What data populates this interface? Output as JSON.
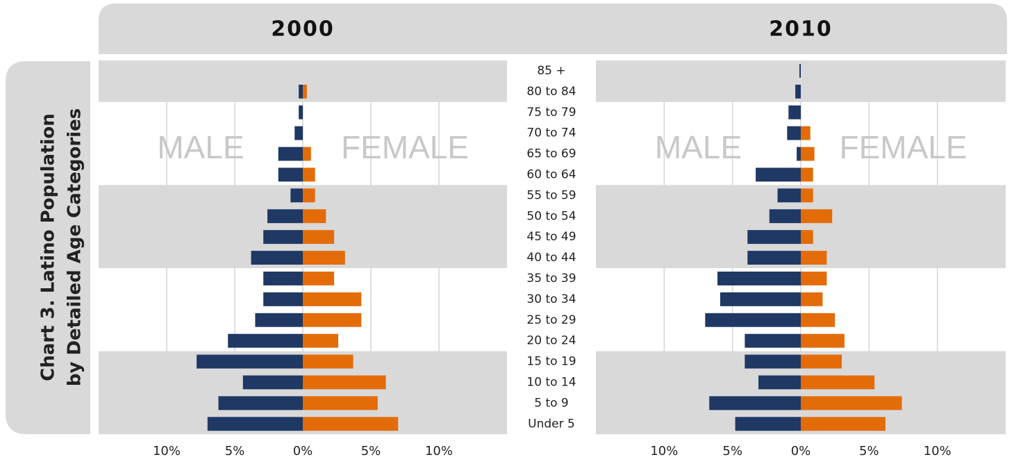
{
  "page_title": [
    "Chart 3. Latino Population",
    "by Detailed Age Categories"
  ],
  "chart_data": [
    {
      "type": "pyramid",
      "title": "2000",
      "categories": [
        "85 +",
        "80 to 84",
        "75 to 79",
        "70 to 74",
        "65 to 69",
        "60 to 64",
        "55 to 59",
        "50 to 54",
        "45 to 49",
        "40 to 44",
        "35 to 39",
        "30 to 34",
        "25 to 29",
        "20 to 24",
        "15 to 19",
        "10 to 14",
        "5 to 9",
        "Under 5"
      ],
      "series": [
        {
          "name": "MALE",
          "color": "#1f3864",
          "values": [
            0,
            -0.3,
            -0.3,
            -0.6,
            -1.8,
            -1.8,
            -0.9,
            -2.6,
            -2.9,
            -3.8,
            -2.9,
            -2.9,
            -3.5,
            -5.5,
            -7.8,
            -4.4,
            -6.2,
            -7.0
          ]
        },
        {
          "name": "FEMALE",
          "color": "#e36c09",
          "values": [
            0,
            0.3,
            0,
            0,
            0.6,
            0.9,
            0.9,
            1.7,
            2.3,
            3.1,
            2.3,
            4.3,
            4.3,
            2.6,
            3.7,
            6.1,
            5.5,
            7.0
          ]
        }
      ],
      "xlim": [
        -15,
        15
      ],
      "xticks": [
        {
          "value": -10,
          "label": "10%"
        },
        {
          "value": -5,
          "label": "5%"
        },
        {
          "value": 0,
          "label": "0%"
        },
        {
          "value": 5,
          "label": "5%"
        },
        {
          "value": 10,
          "label": "10%"
        }
      ],
      "grid": true
    },
    {
      "type": "pyramid",
      "title": "2010",
      "series": [
        {
          "name": "MALE",
          "color": "#1f3864",
          "values": [
            -0.1,
            -0.4,
            -0.9,
            -1.0,
            -0.3,
            -3.3,
            -1.7,
            -2.3,
            -3.9,
            -3.9,
            -6.1,
            -5.9,
            -7.0,
            -4.1,
            -4.1,
            -3.1,
            -6.7,
            -4.8
          ]
        },
        {
          "name": "FEMALE",
          "color": "#e36c09",
          "values": [
            0,
            0,
            0,
            0.7,
            1.0,
            0.9,
            0.9,
            2.3,
            0.9,
            1.9,
            1.9,
            1.6,
            2.5,
            3.2,
            3.0,
            5.4,
            7.4,
            6.2
          ]
        }
      ],
      "xlim": [
        -15,
        15
      ],
      "xticks": [
        {
          "value": -10,
          "label": "10%"
        },
        {
          "value": -5,
          "label": "5%"
        },
        {
          "value": 0,
          "label": "0%"
        },
        {
          "value": 5,
          "label": "5%"
        },
        {
          "value": 10,
          "label": "10%"
        }
      ],
      "grid": true
    }
  ]
}
